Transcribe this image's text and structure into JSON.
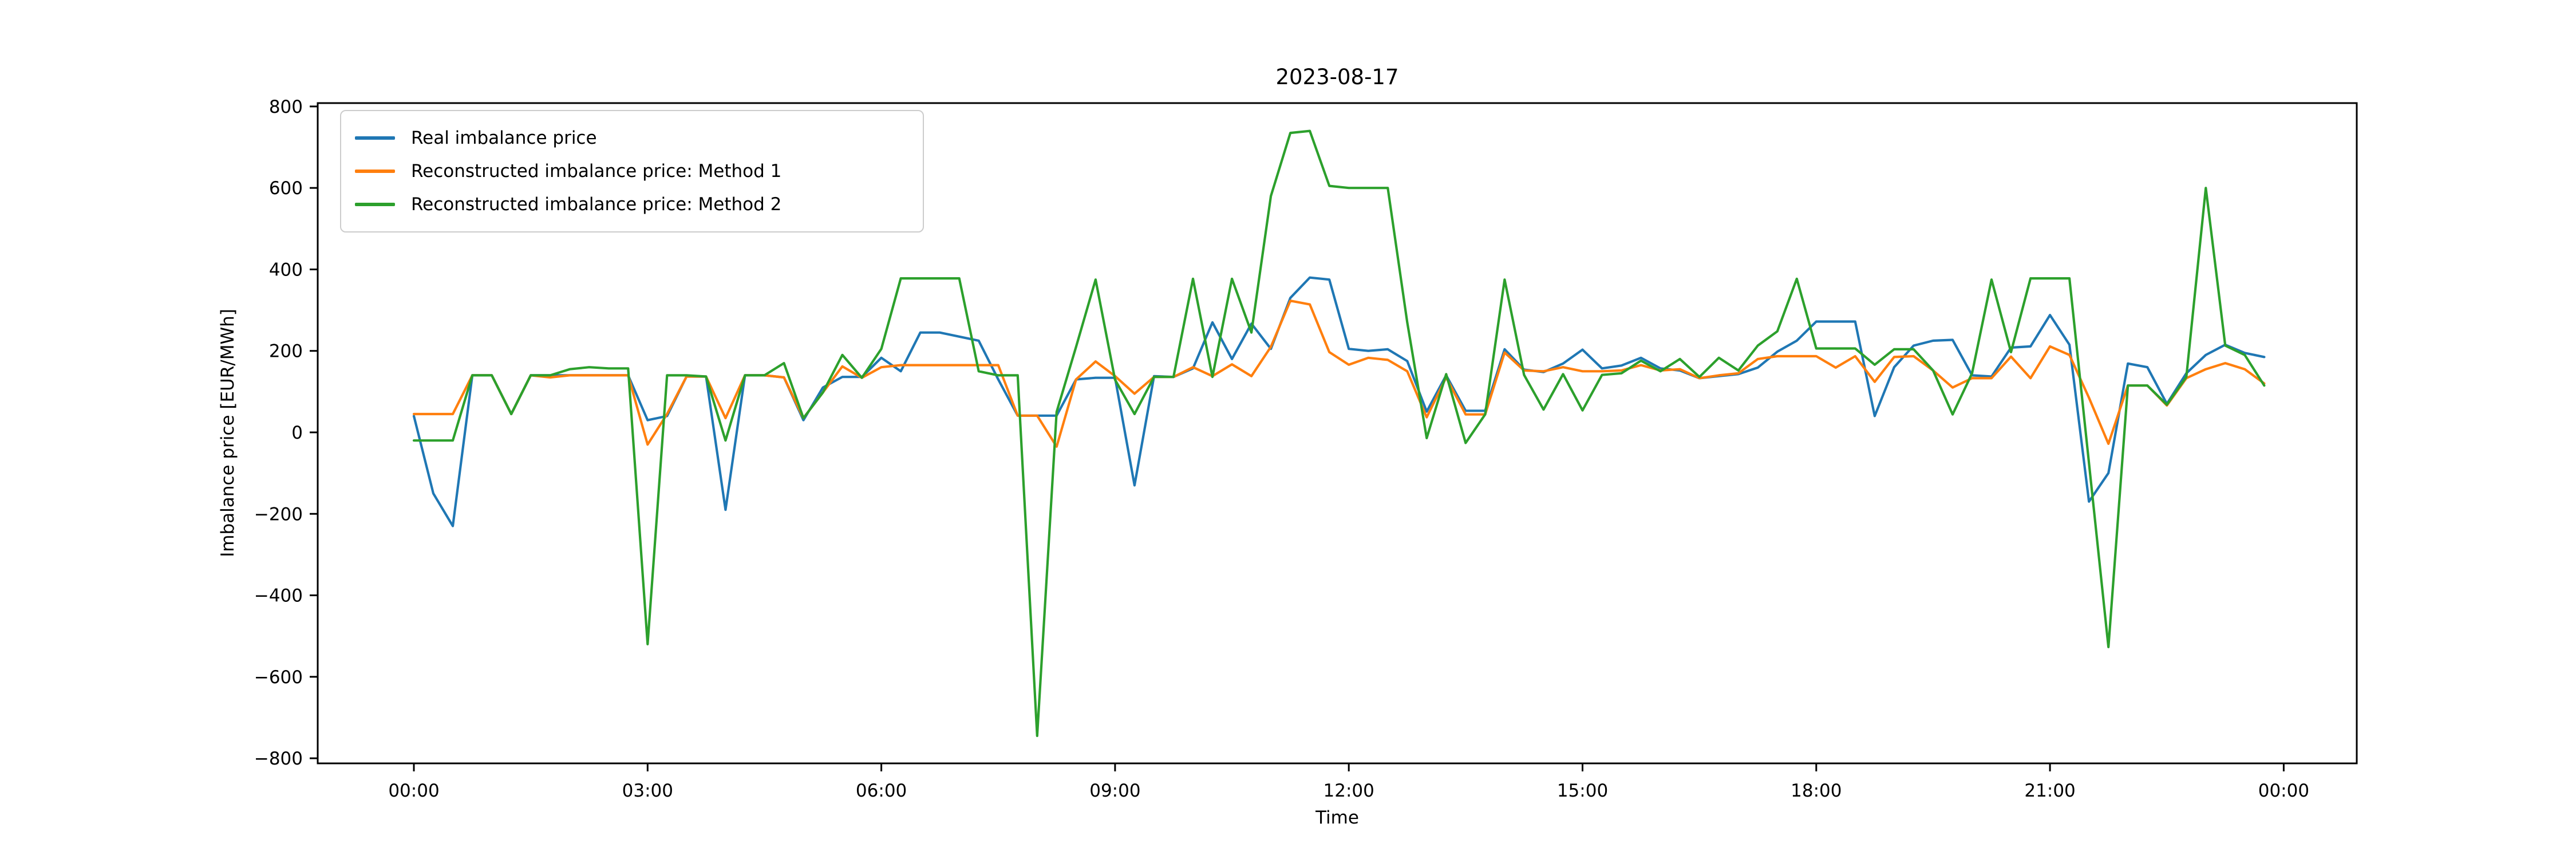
{
  "figure": {
    "title": "2023-08-17",
    "xlabel": "Time",
    "ylabel": "Imbalance price [EUR/MWh]"
  },
  "chart_data": {
    "type": "line",
    "title": "2023-08-17",
    "xlabel": "Time",
    "ylabel": "Imbalance price [EUR/MWh]",
    "x_description": "Time of day, one point per 15 minutes from 00:00 to 23:45",
    "x_tick_hours": [
      0,
      3,
      6,
      9,
      12,
      15,
      18,
      21,
      24
    ],
    "x_tick_labels": [
      "00:00",
      "03:00",
      "06:00",
      "09:00",
      "12:00",
      "15:00",
      "18:00",
      "21:00",
      "00:00"
    ],
    "y_ticks": [
      -800,
      -600,
      -400,
      -200,
      0,
      200,
      400,
      600,
      800
    ],
    "ylim": [
      -812,
      808
    ],
    "xlim_hours": [
      -1.2375,
      24.9375
    ],
    "grid": false,
    "legend_position": "upper left",
    "background": "#ffffff",
    "axis_color": "#000000",
    "series": [
      {
        "name": "Real imbalance price",
        "color": "#1f77b4",
        "values": [
          40,
          -150,
          -230,
          140,
          140,
          45,
          140,
          140,
          140,
          140,
          140,
          140,
          30,
          40,
          137,
          137,
          -190,
          140,
          140,
          135,
          30,
          110,
          136,
          136,
          183,
          150,
          245,
          245,
          235,
          225,
          130,
          41,
          41,
          41,
          130,
          134,
          134,
          -130,
          138,
          136,
          157,
          270,
          180,
          267,
          205,
          330,
          380,
          375,
          205,
          200,
          204,
          175,
          51,
          140,
          53,
          53,
          204,
          154,
          148,
          169,
          203,
          157,
          164,
          183,
          157,
          152,
          133,
          138,
          143,
          159,
          198,
          225,
          272,
          272,
          272,
          40,
          160,
          213,
          225,
          227,
          140,
          137,
          208,
          211,
          288,
          215,
          -170,
          -100,
          169,
          160,
          70,
          145,
          190,
          215,
          195,
          185
        ]
      },
      {
        "name": "Reconstructed imbalance price: Method 1",
        "color": "#ff7f0e",
        "values": [
          45,
          45,
          45,
          140,
          140,
          45,
          140,
          135,
          140,
          140,
          140,
          140,
          -30,
          45,
          137,
          137,
          35,
          140,
          140,
          135,
          35,
          98,
          162,
          134,
          160,
          165,
          165,
          165,
          165,
          165,
          165,
          41,
          41,
          -35,
          130,
          174,
          138,
          95,
          136,
          136,
          160,
          138,
          167,
          138,
          210,
          323,
          314,
          197,
          166,
          183,
          178,
          150,
          37,
          135,
          44,
          44,
          196,
          152,
          150,
          160,
          150,
          150,
          152,
          165,
          152,
          155,
          133,
          140,
          145,
          180,
          187,
          187,
          187,
          159,
          187,
          124,
          185,
          187,
          152,
          110,
          133,
          133,
          186,
          133,
          211,
          190,
          85,
          -28,
          115,
          115,
          66,
          133,
          155,
          170,
          155,
          120
        ]
      },
      {
        "name": "Reconstructed imbalance price: Method 2",
        "color": "#2ca02c",
        "values": [
          -20,
          -20,
          -20,
          140,
          140,
          45,
          140,
          140,
          155,
          160,
          157,
          157,
          -520,
          140,
          140,
          137,
          -20,
          140,
          140,
          170,
          35,
          98,
          190,
          134,
          205,
          378,
          378,
          378,
          378,
          150,
          140,
          140,
          -745,
          50,
          210,
          375,
          129,
          45,
          136,
          136,
          377,
          136,
          377,
          245,
          580,
          735,
          740,
          605,
          600,
          600,
          600,
          270,
          -14,
          143,
          -26,
          44,
          375,
          141,
          56,
          143,
          54,
          141,
          145,
          176,
          150,
          180,
          136,
          183,
          152,
          213,
          248,
          377,
          206,
          206,
          206,
          166,
          204,
          204,
          152,
          44,
          145,
          375,
          197,
          378,
          378,
          378,
          -75,
          -527,
          115,
          115,
          68,
          136,
          600,
          213,
          190,
          115
        ]
      }
    ]
  }
}
